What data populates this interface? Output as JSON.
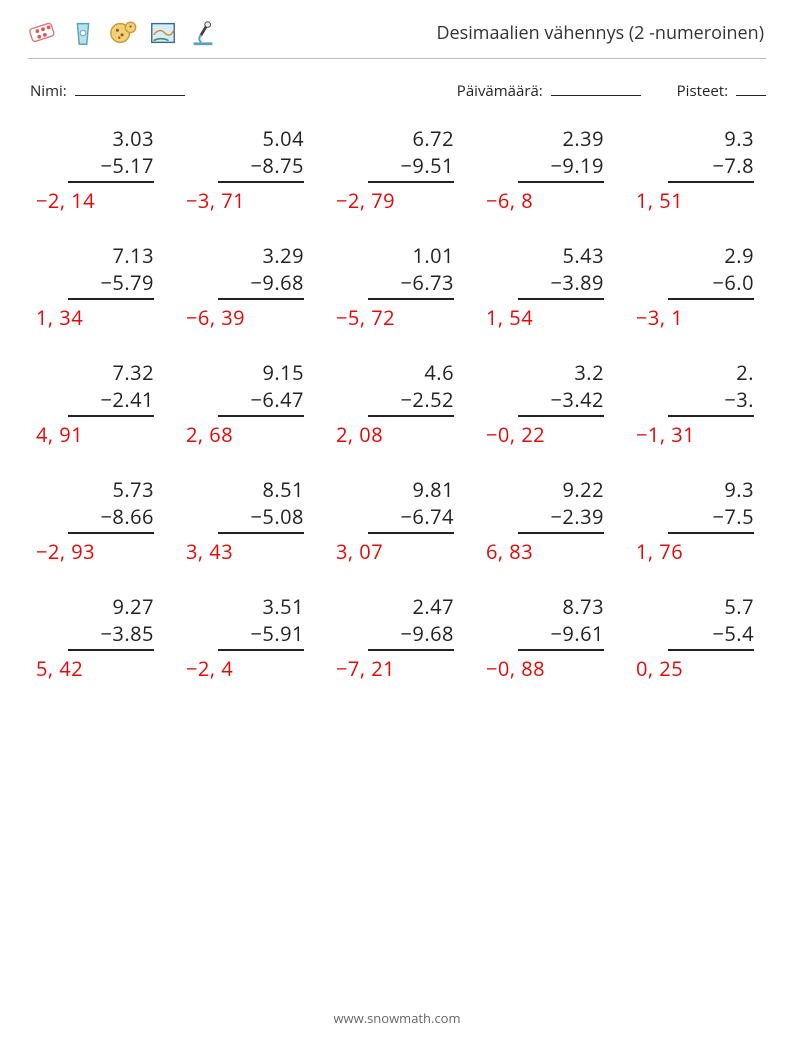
{
  "title": "Desimaalien vähennys (2 -numeroinen)",
  "meta": {
    "name_label": "Nimi:",
    "date_label": "Päivämäärä:",
    "score_label": "Pisteet:",
    "name_blank_width": 110,
    "date_blank_width": 90,
    "score_blank_width": 30
  },
  "layout": {
    "columns": 5,
    "rows": 5,
    "answer_color": "#e40808",
    "text_color": "#222222",
    "rule_color": "#222222",
    "font_size_pt": 15
  },
  "problems": [
    {
      "a": "3.03",
      "b": "5.17",
      "ans": "−2, 14"
    },
    {
      "a": "5.04",
      "b": "8.75",
      "ans": "−3, 71"
    },
    {
      "a": "6.72",
      "b": "9.51",
      "ans": "−2, 79"
    },
    {
      "a": "2.39",
      "b": "9.19",
      "ans": "−6, 8"
    },
    {
      "a": "9.3",
      "b": "7.8",
      "ans": "1, 51",
      "cut": true
    },
    {
      "a": "7.13",
      "b": "5.79",
      "ans": "1, 34"
    },
    {
      "a": "3.29",
      "b": "9.68",
      "ans": "−6, 39"
    },
    {
      "a": "1.01",
      "b": "6.73",
      "ans": "−5, 72"
    },
    {
      "a": "5.43",
      "b": "3.89",
      "ans": "1, 54"
    },
    {
      "a": "2.9",
      "b": "6.0",
      "ans": "−3, 1",
      "cut": true
    },
    {
      "a": "7.32",
      "b": "2.41",
      "ans": "4, 91"
    },
    {
      "a": "9.15",
      "b": "6.47",
      "ans": "2, 68"
    },
    {
      "a": "4.6",
      "b": "2.52",
      "ans": "2, 08"
    },
    {
      "a": "3.2",
      "b": "3.42",
      "ans": "−0, 22"
    },
    {
      "a": "2.",
      "b": "3.",
      "ans": "−1, 31",
      "cut": true
    },
    {
      "a": "5.73",
      "b": "8.66",
      "ans": "−2, 93"
    },
    {
      "a": "8.51",
      "b": "5.08",
      "ans": "3, 43"
    },
    {
      "a": "9.81",
      "b": "6.74",
      "ans": "3, 07"
    },
    {
      "a": "9.22",
      "b": "2.39",
      "ans": "6, 83"
    },
    {
      "a": "9.3",
      "b": "7.5",
      "ans": "1, 76",
      "cut": true
    },
    {
      "a": "9.27",
      "b": "3.85",
      "ans": "5, 42"
    },
    {
      "a": "3.51",
      "b": "5.91",
      "ans": "−2, 4"
    },
    {
      "a": "2.47",
      "b": "9.68",
      "ans": "−7, 21"
    },
    {
      "a": "8.73",
      "b": "9.61",
      "ans": "−0, 88"
    },
    {
      "a": "5.7",
      "b": "5.4",
      "ans": "0, 25",
      "cut": true
    }
  ],
  "footer": "www.snowmath.com"
}
